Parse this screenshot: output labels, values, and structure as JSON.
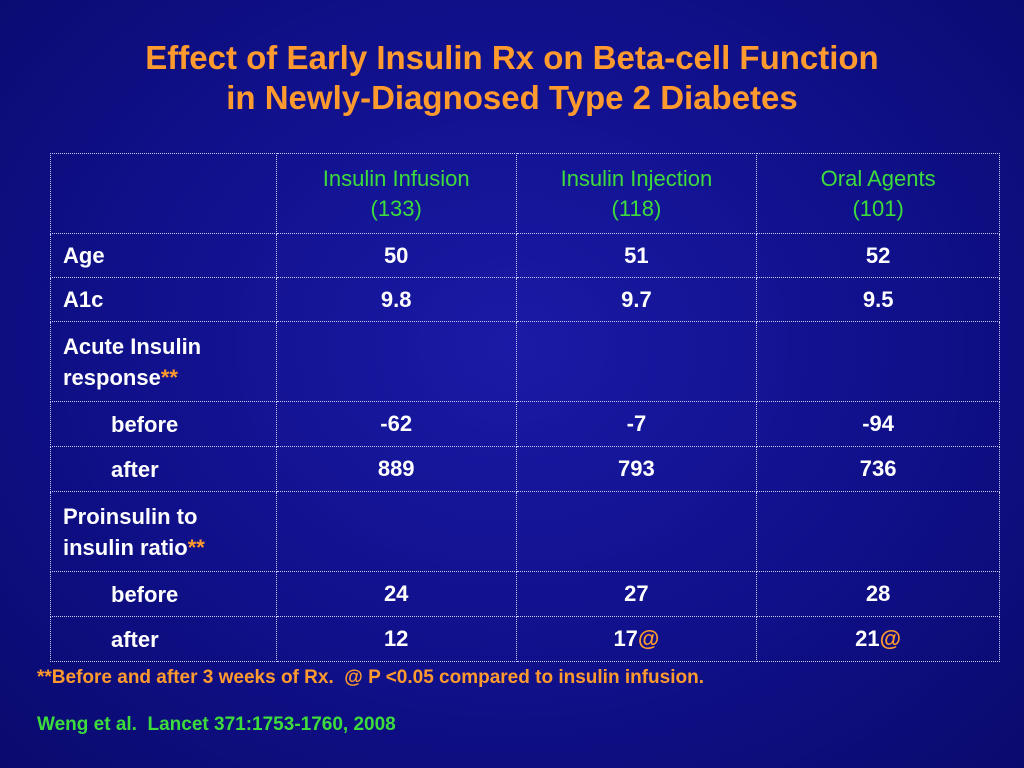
{
  "slide": {
    "title_line1": "Effect of Early Insulin Rx on Beta-cell Function",
    "title_line2": "in Newly-Diagnosed Type 2 Diabetes",
    "colors": {
      "background": "#10108a",
      "title": "#ff9a2e",
      "header": "#3ddc3d",
      "body_text": "#ffffff",
      "accent": "#ff9a2e"
    }
  },
  "table": {
    "columns": [
      {
        "line1": "Insulin Infusion",
        "line2": "(133)"
      },
      {
        "line1": "Insulin Injection",
        "line2": "(118)"
      },
      {
        "line1": "Oral Agents",
        "line2": "(101)"
      }
    ],
    "rows": {
      "age": {
        "label": "Age",
        "values": [
          "50",
          "51",
          "52"
        ]
      },
      "a1c": {
        "label": "A1c",
        "values": [
          "9.8",
          "9.7",
          "9.5"
        ]
      },
      "air": {
        "label_line1": "Acute Insulin",
        "label_line2": "response",
        "marker": "**"
      },
      "air_before": {
        "label": "before",
        "values": [
          "-62",
          "-7",
          "-94"
        ]
      },
      "air_after": {
        "label": "after",
        "values": [
          "889",
          "793",
          "736"
        ]
      },
      "pi": {
        "label_line1": "Proinsulin to",
        "label_line2": "insulin ratio",
        "marker": "**"
      },
      "pi_before": {
        "label": "before",
        "values": [
          "24",
          "27",
          "28"
        ]
      },
      "pi_after": {
        "label": "after",
        "values": [
          "12",
          "17",
          "21"
        ],
        "sig_marks": [
          "",
          "@",
          "@"
        ]
      }
    }
  },
  "footnote": "**Before and after 3 weeks of Rx.  @ P <0.05 compared to insulin infusion.",
  "citation": "Weng et al.  Lancet 371:1753-1760, 2008"
}
